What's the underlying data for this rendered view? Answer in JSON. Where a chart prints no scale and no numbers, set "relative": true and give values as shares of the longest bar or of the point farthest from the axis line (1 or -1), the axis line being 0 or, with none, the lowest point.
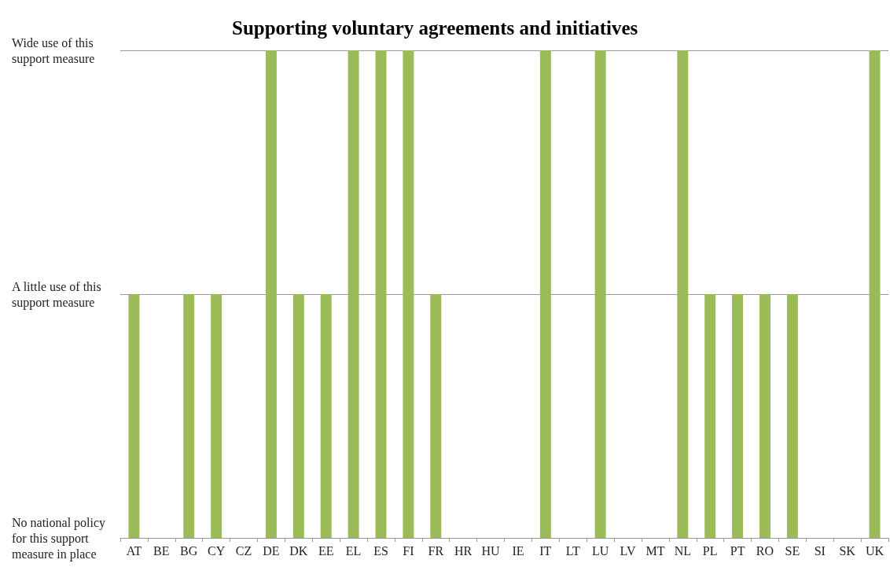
{
  "chart_data": {
    "type": "bar",
    "title": "Supporting voluntary agreements and initiatives",
    "categories": [
      "AT",
      "BE",
      "BG",
      "CY",
      "CZ",
      "DE",
      "DK",
      "EE",
      "EL",
      "ES",
      "FI",
      "FR",
      "HR",
      "HU",
      "IE",
      "IT",
      "LT",
      "LU",
      "LV",
      "MT",
      "NL",
      "PL",
      "PT",
      "RO",
      "SE",
      "SI",
      "SK",
      "UK"
    ],
    "values": [
      0.5,
      0,
      0.5,
      0.5,
      0,
      1,
      0.5,
      0.5,
      1,
      1,
      1,
      0.5,
      0,
      0,
      0,
      1,
      0,
      1,
      0,
      0,
      1,
      0.5,
      0.5,
      0.5,
      0.5,
      0,
      0,
      1
    ],
    "relative": true,
    "color": "#9bbb59",
    "annotations": [
      "Wide use of this support measure",
      "A little use of this support measure",
      "No national policy for this support measure in place"
    ],
    "ref_lines": [
      {
        "axis": "y",
        "value": 1,
        "color": "#999999"
      },
      {
        "axis": "y",
        "value": 0.5,
        "color": "#999999"
      }
    ]
  }
}
